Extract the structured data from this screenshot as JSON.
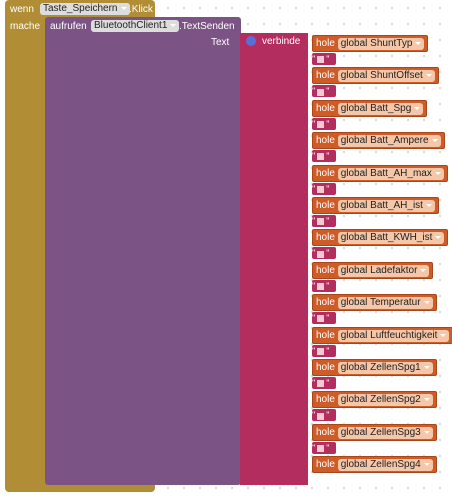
{
  "event": {
    "when": "wenn",
    "component": "Taste_Speichern",
    "event": ".Klick",
    "do": "mache"
  },
  "call": {
    "label": "aufrufen",
    "component": "BluetoothClient1",
    "method": ".TextSenden",
    "param": "Text"
  },
  "join": {
    "label": "verbinde"
  },
  "text_quote": {
    "open": "\"",
    "close": "\""
  },
  "getters": [
    {
      "label": "hole",
      "name": "global ShuntTyp"
    },
    {
      "label": "hole",
      "name": "global ShuntOffset"
    },
    {
      "label": "hole",
      "name": "global Batt_Spg"
    },
    {
      "label": "hole",
      "name": "global Batt_Ampere"
    },
    {
      "label": "hole",
      "name": "global Batt_AH_max"
    },
    {
      "label": "hole",
      "name": "global Batt_AH_ist"
    },
    {
      "label": "hole",
      "name": "global Batt_KWH_ist"
    },
    {
      "label": "hole",
      "name": "global Ladefaktor"
    },
    {
      "label": "hole",
      "name": "global Temperatur"
    },
    {
      "label": "hole",
      "name": "global Luftfeuchtigkeit"
    },
    {
      "label": "hole",
      "name": "global ZellenSpg1"
    },
    {
      "label": "hole",
      "name": "global ZellenSpg2"
    },
    {
      "label": "hole",
      "name": "global ZellenSpg3"
    },
    {
      "label": "hole",
      "name": "global ZellenSpg4"
    }
  ]
}
